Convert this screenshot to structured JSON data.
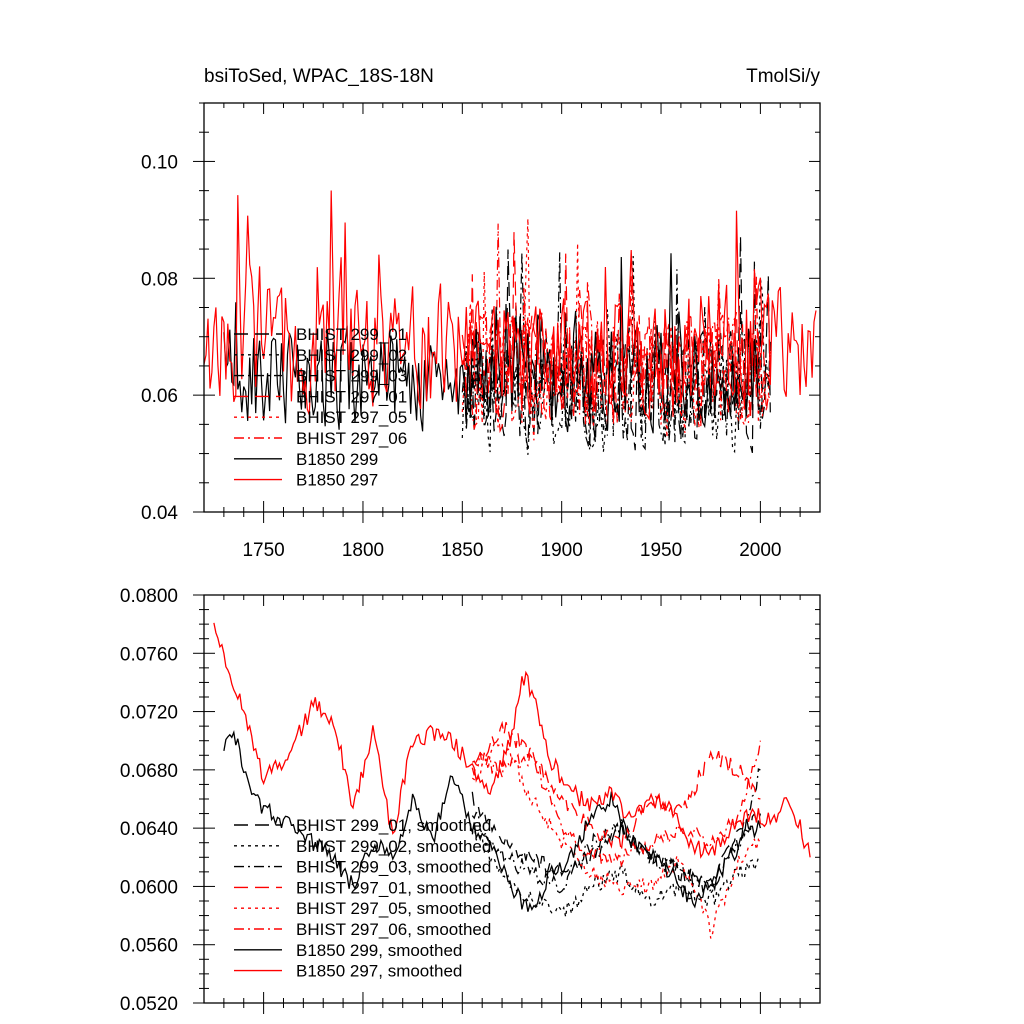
{
  "colors": {
    "black": "#000000",
    "red": "#ff0000"
  },
  "chart_data": [
    {
      "type": "line",
      "title": "bsiToSed, WPAC_18S-18N",
      "units": "TmolSi/y",
      "xlim": [
        1720,
        2030
      ],
      "ylim": [
        0.04,
        0.11
      ],
      "xticks": [
        1750,
        1800,
        1850,
        1900,
        1950,
        2000
      ],
      "xtick_labels": [
        "1750",
        "1800",
        "1850",
        "1900",
        "1950",
        "2000"
      ],
      "yticks": [
        0.04,
        0.06,
        0.08,
        0.1
      ],
      "ytick_labels": [
        "0.04",
        "0.06",
        "0.08",
        "0.10"
      ],
      "grid": false,
      "legend_position": "bottom-left",
      "series": [
        {
          "name": "BHIST 299_01",
          "color": "#000000",
          "dash": "long-dash",
          "x_start": 1850,
          "x_end": 2005,
          "mean": 0.061,
          "amp": 0.009
        },
        {
          "name": "BHIST 299_02",
          "color": "#000000",
          "dash": "dot",
          "x_start": 1850,
          "x_end": 2005,
          "mean": 0.06,
          "amp": 0.009
        },
        {
          "name": "BHIST 299_03",
          "color": "#000000",
          "dash": "dash-dot",
          "x_start": 1850,
          "x_end": 2005,
          "mean": 0.061,
          "amp": 0.009
        },
        {
          "name": "BHIST 297_01",
          "color": "#ff0000",
          "dash": "long-dash",
          "x_start": 1850,
          "x_end": 2005,
          "mean": 0.064,
          "amp": 0.009
        },
        {
          "name": "BHIST 297_05",
          "color": "#ff0000",
          "dash": "dot",
          "x_start": 1850,
          "x_end": 2005,
          "mean": 0.062,
          "amp": 0.009
        },
        {
          "name": "BHIST 297_06",
          "color": "#ff0000",
          "dash": "dash-dot",
          "x_start": 1850,
          "x_end": 2005,
          "mean": 0.064,
          "amp": 0.009
        },
        {
          "name": "B1850 299",
          "color": "#000000",
          "dash": "solid",
          "x_start": 1730,
          "x_end": 2000,
          "mean": 0.063,
          "amp": 0.008
        },
        {
          "name": "B1850 297",
          "color": "#ff0000",
          "dash": "solid",
          "x_start": 1720,
          "x_end": 2028,
          "mean": 0.068,
          "amp": 0.01
        }
      ]
    },
    {
      "type": "line",
      "xlim": [
        1720,
        2030
      ],
      "ylim": [
        0.052,
        0.08
      ],
      "xticks": [
        1750,
        1800,
        1850,
        1900,
        1950,
        2000
      ],
      "yticks": [
        0.052,
        0.056,
        0.06,
        0.064,
        0.068,
        0.072,
        0.076,
        0.08
      ],
      "ytick_labels": [
        "0.0520",
        "0.0560",
        "0.0600",
        "0.0640",
        "0.0680",
        "0.0720",
        "0.0760",
        "0.0800"
      ],
      "grid": false,
      "legend_position": "bottom-left",
      "series": [
        {
          "name": "BHIST 299_01, smoothed",
          "color": "#000000",
          "dash": "long-dash",
          "x": [
            1855,
            1870,
            1885,
            1900,
            1915,
            1930,
            1945,
            1960,
            1975,
            1990,
            2000
          ],
          "y": [
            0.066,
            0.063,
            0.062,
            0.061,
            0.062,
            0.064,
            0.062,
            0.061,
            0.06,
            0.064,
            0.065
          ]
        },
        {
          "name": "BHIST 299_02, smoothed",
          "color": "#000000",
          "dash": "dot",
          "x": [
            1855,
            1870,
            1885,
            1900,
            1915,
            1930,
            1945,
            1960,
            1975,
            1990,
            2000
          ],
          "y": [
            0.064,
            0.061,
            0.059,
            0.058,
            0.06,
            0.061,
            0.059,
            0.06,
            0.059,
            0.061,
            0.062
          ]
        },
        {
          "name": "BHIST 299_03, smoothed",
          "color": "#000000",
          "dash": "dash-dot",
          "x": [
            1855,
            1870,
            1885,
            1900,
            1915,
            1930,
            1945,
            1960,
            1975,
            1990,
            2000
          ],
          "y": [
            0.065,
            0.062,
            0.061,
            0.06,
            0.063,
            0.064,
            0.062,
            0.061,
            0.06,
            0.063,
            0.068
          ]
        },
        {
          "name": "BHIST 297_01, smoothed",
          "color": "#ff0000",
          "dash": "long-dash",
          "x": [
            1855,
            1870,
            1885,
            1900,
            1915,
            1930,
            1945,
            1960,
            1975,
            1990,
            2000
          ],
          "y": [
            0.068,
            0.071,
            0.069,
            0.066,
            0.064,
            0.063,
            0.066,
            0.065,
            0.069,
            0.068,
            0.066
          ]
        },
        {
          "name": "BHIST 297_05, smoothed",
          "color": "#ff0000",
          "dash": "dot",
          "x": [
            1855,
            1870,
            1885,
            1900,
            1915,
            1930,
            1945,
            1960,
            1975,
            1990,
            2000
          ],
          "y": [
            0.067,
            0.07,
            0.066,
            0.063,
            0.061,
            0.06,
            0.06,
            0.062,
            0.057,
            0.062,
            0.063
          ]
        },
        {
          "name": "BHIST 297_06, smoothed",
          "color": "#ff0000",
          "dash": "dash-dot",
          "x": [
            1855,
            1870,
            1885,
            1900,
            1915,
            1930,
            1945,
            1960,
            1975,
            1990,
            2000
          ],
          "y": [
            0.069,
            0.068,
            0.069,
            0.064,
            0.062,
            0.062,
            0.063,
            0.064,
            0.063,
            0.065,
            0.07
          ]
        },
        {
          "name": "B1850 299, smoothed",
          "color": "#000000",
          "dash": "solid",
          "x": [
            1730,
            1735,
            1745,
            1755,
            1765,
            1775,
            1785,
            1795,
            1805,
            1815,
            1825,
            1835,
            1845,
            1855,
            1865,
            1875,
            1885,
            1895,
            1905,
            1915,
            1925,
            1935,
            1945,
            1955,
            1965,
            1975,
            1985,
            1995,
            2000
          ],
          "y": [
            0.0695,
            0.0705,
            0.066,
            0.065,
            0.064,
            0.063,
            0.062,
            0.06,
            0.063,
            0.062,
            0.066,
            0.063,
            0.068,
            0.064,
            0.063,
            0.06,
            0.058,
            0.061,
            0.062,
            0.065,
            0.066,
            0.063,
            0.062,
            0.061,
            0.059,
            0.06,
            0.062,
            0.064,
            0.064
          ]
        },
        {
          "name": "B1850 297, smoothed",
          "color": "#ff0000",
          "dash": "solid",
          "x": [
            1725,
            1730,
            1740,
            1750,
            1760,
            1770,
            1775,
            1785,
            1795,
            1805,
            1815,
            1825,
            1835,
            1845,
            1855,
            1865,
            1875,
            1880,
            1885,
            1895,
            1905,
            1915,
            1925,
            1935,
            1945,
            1955,
            1965,
            1975,
            1985,
            1995,
            2005,
            2015,
            2025
          ],
          "y": [
            0.078,
            0.0755,
            0.072,
            0.0675,
            0.0685,
            0.071,
            0.0725,
            0.0715,
            0.0655,
            0.0705,
            0.0635,
            0.07,
            0.0705,
            0.07,
            0.068,
            0.0665,
            0.0705,
            0.0745,
            0.0735,
            0.0685,
            0.0665,
            0.0655,
            0.0665,
            0.0645,
            0.066,
            0.0655,
            0.063,
            0.062,
            0.064,
            0.065,
            0.0645,
            0.066,
            0.062
          ]
        }
      ]
    }
  ]
}
